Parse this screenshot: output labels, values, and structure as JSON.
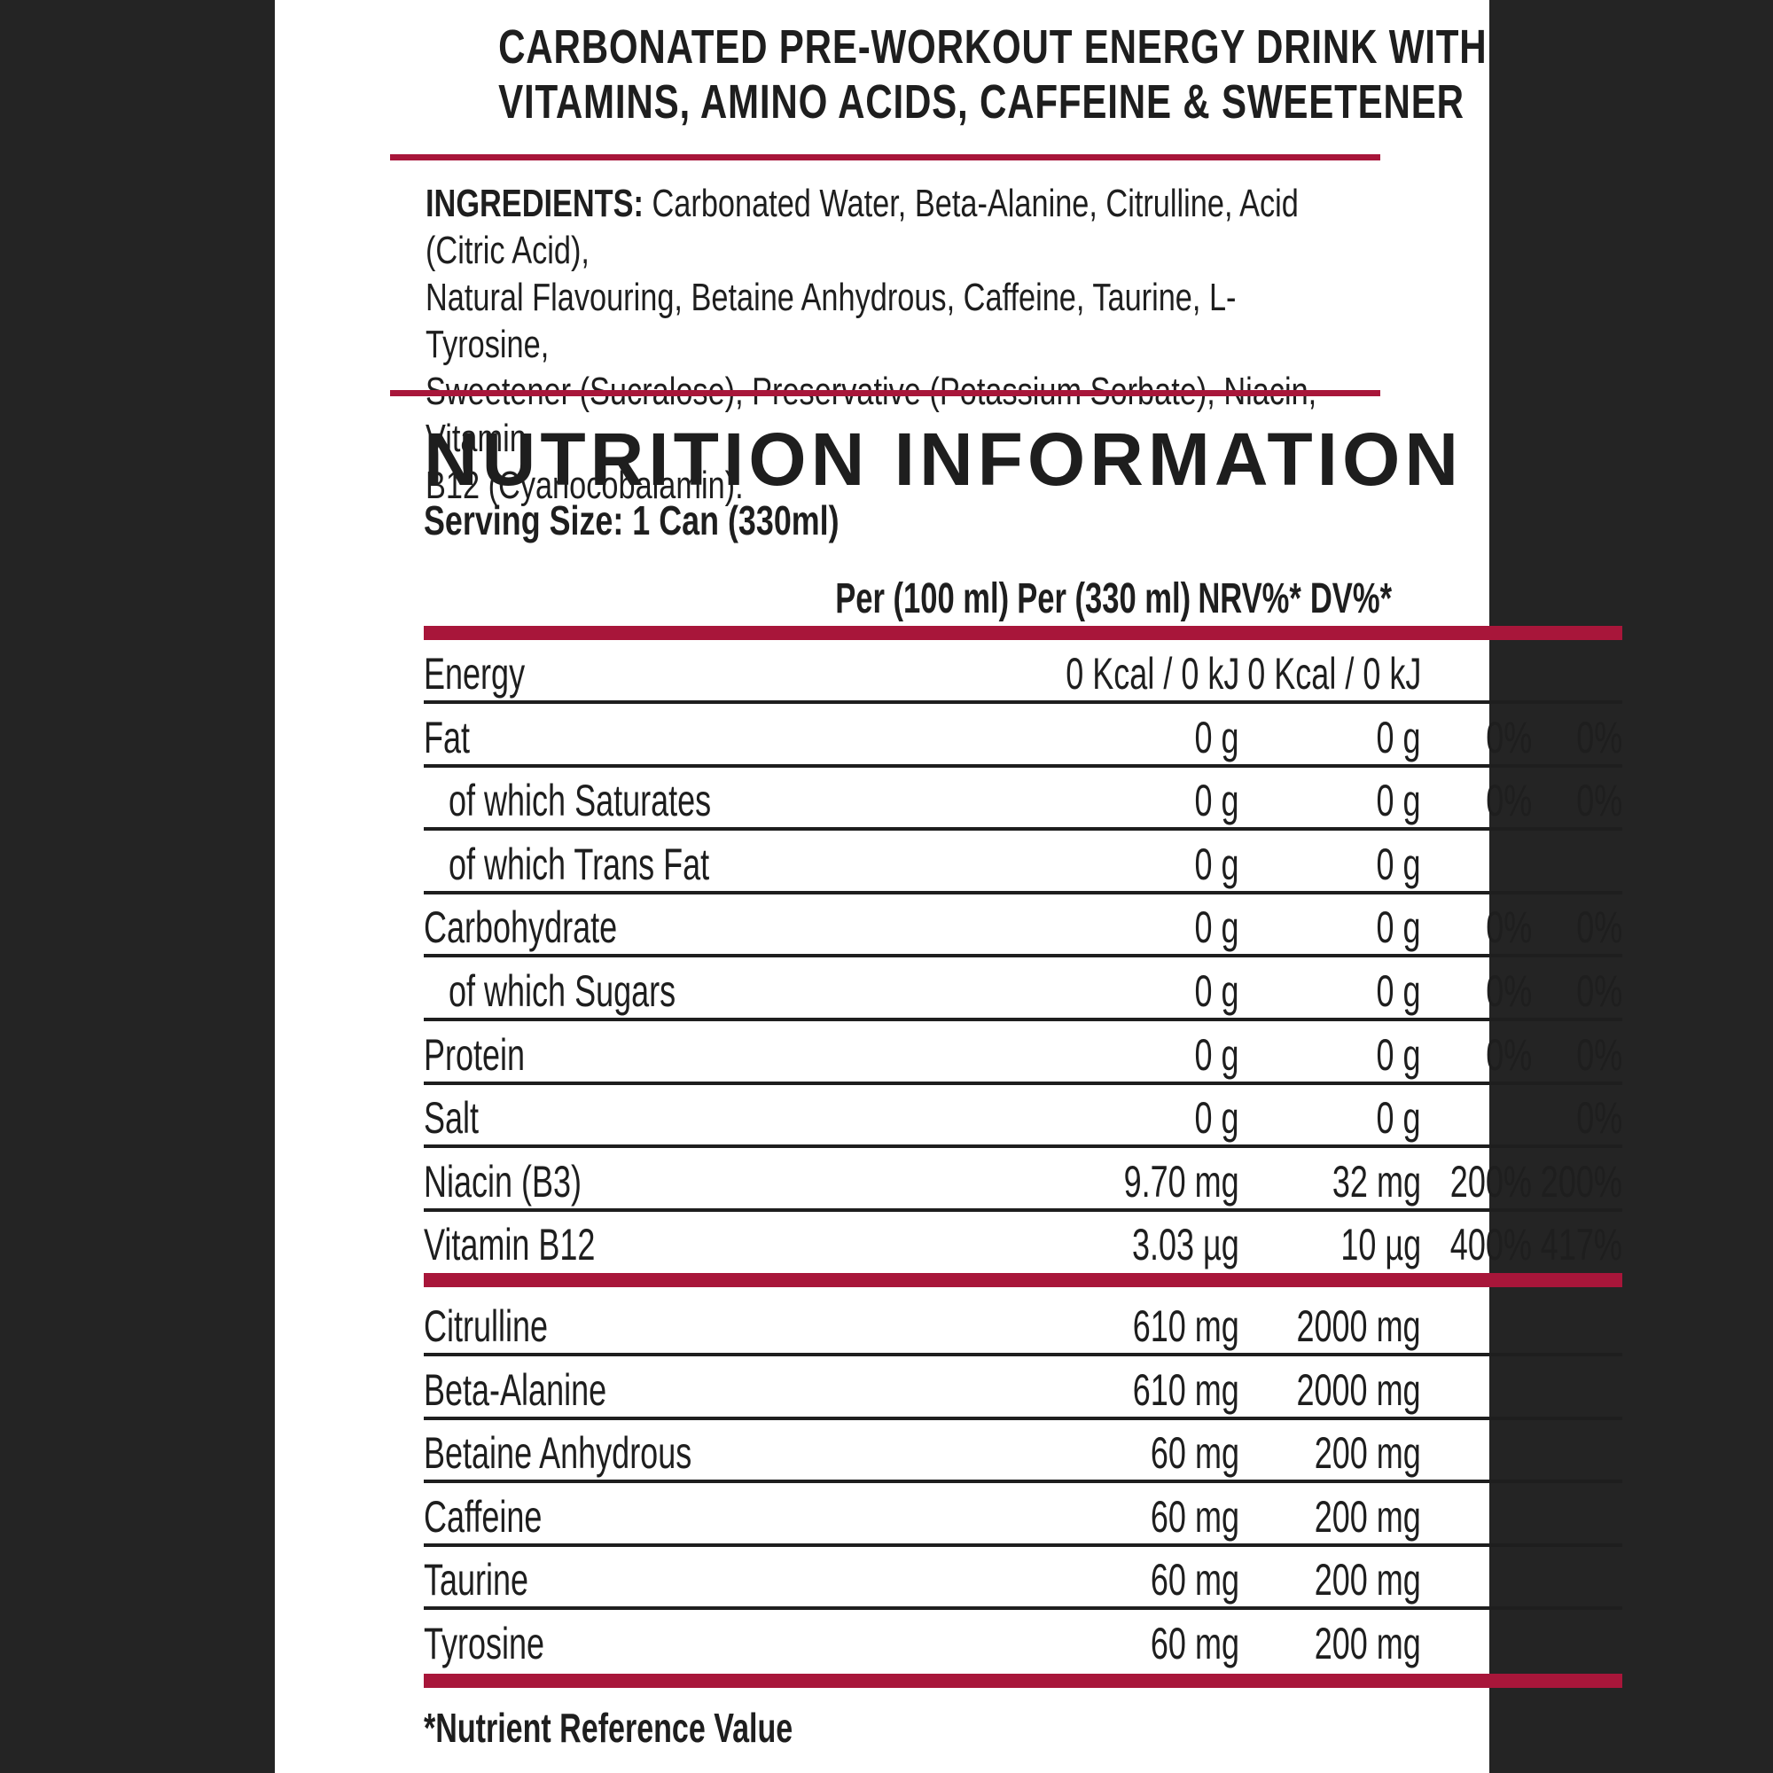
{
  "header": {
    "title_line1": "CARBONATED PRE-WORKOUT ENERGY DRINK WITH",
    "title_line2": "VITAMINS, AMINO ACIDS, CAFFEINE & SWEETENER"
  },
  "ingredients": {
    "label": "INGREDIENTS:",
    "line1": " Carbonated Water, Beta-Alanine, Citrulline, Acid (Citric Acid),",
    "line2": "Natural Flavouring, Betaine Anhydrous, Caffeine, Taurine, L-Tyrosine,",
    "line3": "Sweetener (Sucralose), Preservative (Potassium Sorbate), Niacin, Vitamin",
    "line4": "B12 (Cyanocobalamin)."
  },
  "nutrition": {
    "title": "NUTRITION INFORMATION",
    "serving": "Serving Size: 1 Can (330ml)",
    "columns": [
      "Per (100 ml)",
      "Per (330 ml)",
      "NRV%*",
      "DV%*"
    ],
    "rows": [
      {
        "name": "Energy",
        "per100": "0 Kcal / 0 kJ",
        "per330": "0 Kcal / 0 kJ",
        "nrv": "",
        "dv": ""
      },
      {
        "name": "Fat",
        "per100": "0 g",
        "per330": "0 g",
        "nrv": "0%",
        "dv": "0%"
      },
      {
        "name": "of which Saturates",
        "per100": "0 g",
        "per330": "0 g",
        "nrv": "0%",
        "dv": "0%"
      },
      {
        "name": "of which Trans Fat",
        "per100": "0 g",
        "per330": "0 g",
        "nrv": "",
        "dv": ""
      },
      {
        "name": "Carbohydrate",
        "per100": "0 g",
        "per330": "0 g",
        "nrv": "0%",
        "dv": "0%"
      },
      {
        "name": "of which Sugars",
        "per100": "0 g",
        "per330": "0 g",
        "nrv": "0%",
        "dv": "0%"
      },
      {
        "name": "Protein",
        "per100": "0 g",
        "per330": "0 g",
        "nrv": "0%",
        "dv": "0%"
      },
      {
        "name": "Salt",
        "per100": "0 g",
        "per330": "0 g",
        "nrv": "",
        "dv": "0%"
      },
      {
        "name": "Niacin (B3)",
        "per100": "9.70 mg",
        "per330": "32 mg",
        "nrv": "200%",
        "dv": "200%"
      },
      {
        "name": "Vitamin B12",
        "per100": "3.03 µg",
        "per330": "10 µg",
        "nrv": "400%",
        "dv": "417%"
      }
    ],
    "extras": [
      {
        "name": "Citrulline",
        "per100": "610 mg",
        "per330": "2000 mg"
      },
      {
        "name": "Beta-Alanine",
        "per100": "610 mg",
        "per330": "2000 mg"
      },
      {
        "name": "Betaine Anhydrous",
        "per100": "60 mg",
        "per330": "200 mg"
      },
      {
        "name": "Caffeine",
        "per100": "60 mg",
        "per330": "200 mg"
      },
      {
        "name": "Taurine",
        "per100": "60 mg",
        "per330": "200 mg"
      },
      {
        "name": "Tyrosine",
        "per100": "60 mg",
        "per330": "200 mg"
      }
    ],
    "footnote": "*Nutrient Reference Value"
  },
  "colors": {
    "accent": "#a8163a",
    "background": "#242424",
    "text": "#1e1e1e"
  }
}
